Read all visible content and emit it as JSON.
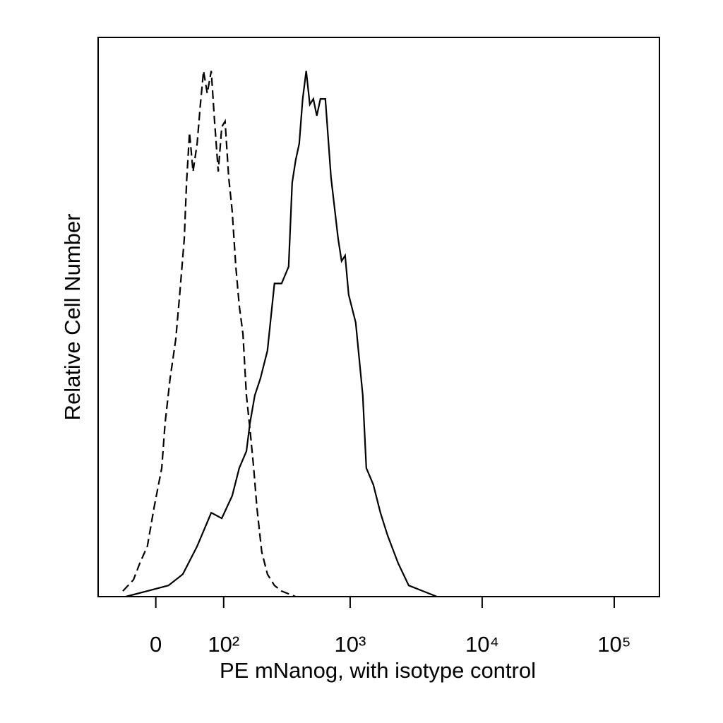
{
  "chart_data": {
    "type": "histogram-overlay",
    "xlabel": "PE mNanog, with isotype control",
    "ylabel": "Relative Cell Number",
    "xscale": "asinh",
    "xlim": [
      -80,
      220000
    ],
    "ylim": [
      0,
      100
    ],
    "xticks": [
      0,
      {
        "value": 100,
        "label": "10²"
      },
      {
        "value": 1000,
        "label": "10³"
      },
      {
        "value": 10000,
        "label": "10⁴"
      },
      {
        "value": 100000,
        "label": "10⁵"
      }
    ],
    "series": [
      {
        "color": "#000000",
        "dash": true,
        "x": [
          -41,
          -27,
          -19,
          -10,
          -2,
          7,
          11,
          17,
          24,
          29,
          35,
          38,
          42,
          47,
          53,
          58,
          63,
          69,
          76,
          82,
          89,
          96,
          103,
          111,
          119,
          128,
          137,
          147,
          157,
          168,
          180,
          191,
          209,
          232,
          263,
          299,
          384
        ],
        "values": [
          1,
          3,
          6,
          9,
          16,
          23,
          31,
          39,
          46,
          54,
          64,
          74,
          83,
          76,
          81,
          88,
          94,
          90,
          94,
          85,
          76,
          84,
          85,
          75,
          69,
          59,
          52,
          47,
          36,
          30,
          23,
          16,
          8,
          4,
          2,
          1,
          0
        ]
      },
      {
        "color": "#000000",
        "dash": false,
        "x": [
          -37,
          -10,
          15,
          33,
          53,
          76,
          96,
          119,
          137,
          157,
          168,
          184,
          204,
          232,
          263,
          299,
          339,
          361,
          384,
          409,
          435,
          463,
          493,
          525,
          558,
          594,
          648,
          715,
          810,
          861,
          916,
          974,
          1102,
          1247,
          1326,
          1500,
          1697,
          1919,
          2308,
          2778,
          3555,
          4545
        ],
        "values": [
          0,
          1,
          2,
          4,
          9,
          15,
          14,
          18,
          23,
          26,
          31,
          36,
          39,
          44,
          56,
          56,
          59,
          74,
          78,
          81,
          89,
          94,
          88,
          89,
          86,
          89,
          89,
          75,
          64,
          60,
          61,
          54,
          49,
          36,
          23,
          20,
          15,
          11,
          6,
          2,
          1,
          0
        ]
      }
    ]
  }
}
